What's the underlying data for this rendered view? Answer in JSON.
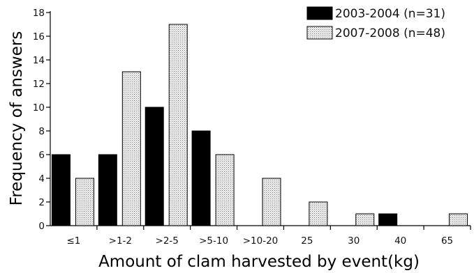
{
  "chart_data": {
    "type": "bar",
    "title": "",
    "xlabel": "Amount of clam harvested by event(kg)",
    "ylabel": "Frequency of answers",
    "ylim": [
      0,
      18
    ],
    "yticks": [
      0,
      2,
      4,
      6,
      8,
      10,
      12,
      14,
      16,
      18
    ],
    "categories": [
      "≤1",
      ">1-2",
      ">2-5",
      ">5-10",
      ">10-20",
      "25",
      "30",
      "40",
      "65"
    ],
    "series": [
      {
        "name": "2003-2004 (n=31)",
        "color": "#000000",
        "pattern": "solid",
        "values": [
          6,
          6,
          10,
          8,
          0,
          0,
          0,
          1,
          0
        ]
      },
      {
        "name": "2007-2008 (n=48)",
        "color": "#e8e8e8",
        "pattern": "dotted",
        "values": [
          4,
          13,
          17,
          6,
          4,
          2,
          1,
          0,
          1
        ]
      }
    ],
    "legend_position": "top-right",
    "grid": false
  }
}
